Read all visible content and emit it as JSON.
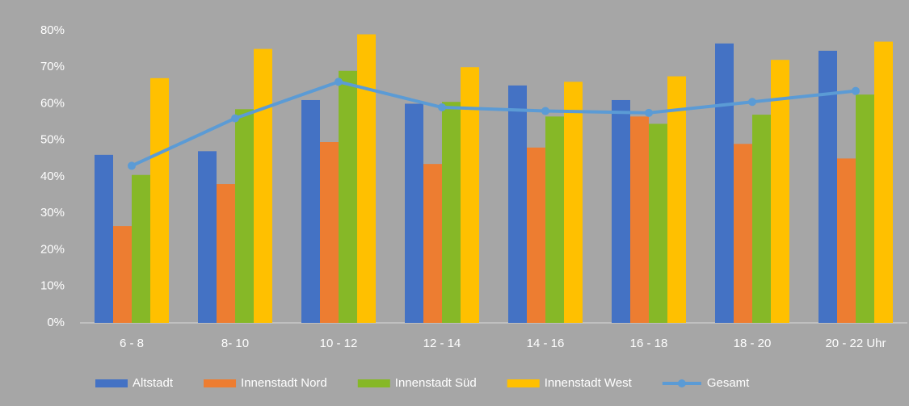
{
  "chart_data": {
    "type": "bar",
    "categories": [
      "6 - 8",
      "8- 10",
      "10 - 12",
      "12 - 14",
      "14 - 16",
      "16 - 18",
      "18 - 20",
      "20 - 22 Uhr"
    ],
    "series": [
      {
        "name": "Altstadt",
        "color": "#4472c4",
        "values": [
          46,
          47,
          61,
          60,
          65,
          61,
          76.5,
          74.5
        ]
      },
      {
        "name": "Innenstadt Nord",
        "color": "#ed7d31",
        "values": [
          26.5,
          38,
          49.5,
          43.5,
          48,
          56.5,
          49,
          45
        ]
      },
      {
        "name": "Innenstadt Süd",
        "color": "#86b827",
        "values": [
          40.5,
          58.5,
          69,
          60.5,
          56.5,
          54.5,
          57,
          62.5
        ]
      },
      {
        "name": "Innenstadt West",
        "color": "#ffc000",
        "values": [
          67,
          75,
          79,
          70,
          66,
          67.5,
          72,
          77
        ]
      },
      {
        "name": "Gesamt",
        "color": "#5b9bd5",
        "type": "line",
        "values": [
          43,
          56,
          66,
          59,
          58,
          57.5,
          60.5,
          63.5
        ]
      }
    ],
    "ylim": [
      0,
      80
    ],
    "yticks": [
      {
        "value": 0,
        "label": "0%"
      },
      {
        "value": 10,
        "label": "10%"
      },
      {
        "value": 20,
        "label": "20%"
      },
      {
        "value": 30,
        "label": "30%"
      },
      {
        "value": 40,
        "label": "40%"
      },
      {
        "value": 50,
        "label": "50%"
      },
      {
        "value": 60,
        "label": "60%"
      },
      {
        "value": 70,
        "label": "70%"
      },
      {
        "value": 80,
        "label": "80%"
      }
    ],
    "grid": false,
    "legend": "bottom"
  }
}
